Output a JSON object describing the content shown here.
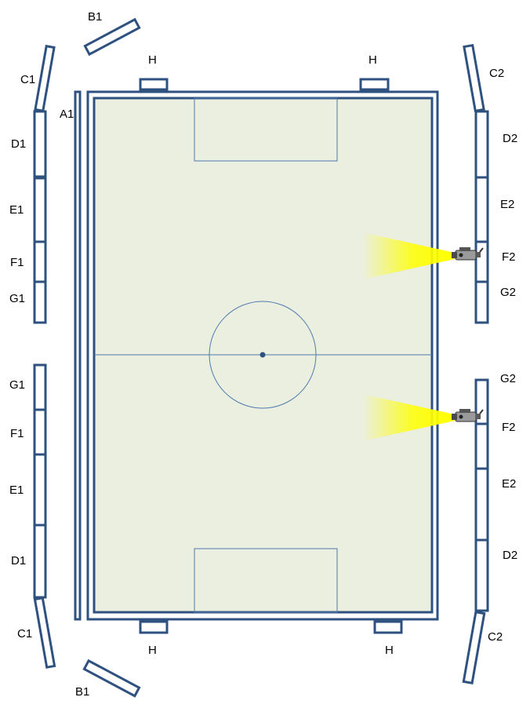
{
  "colors": {
    "outline": "#2e5180",
    "pitch_fill": "#ebefe0",
    "field_lines": "#4f7ab0",
    "beam": "#ffff00",
    "background": "#ffffff"
  },
  "left_side": {
    "barrier_label": "A1",
    "north": {
      "B1": "B1",
      "C1": "C1",
      "D1": "D1",
      "E1": "E1",
      "F1": "F1",
      "G1": "G1"
    },
    "south": {
      "G1": "G1",
      "F1": "F1",
      "E1": "E1",
      "D1": "D1",
      "C1": "C1",
      "B1": "B1"
    }
  },
  "right_side": {
    "north": {
      "C2": "C2",
      "D2": "D2",
      "E2": "E2",
      "F2": "F2",
      "G2": "G2"
    },
    "south": {
      "G2": "G2",
      "F2": "F2",
      "E2": "E2",
      "D2": "D2",
      "C2": "C2"
    }
  },
  "ends": {
    "top": {
      "H_left": "H",
      "H_right": "H"
    },
    "bottom": {
      "H_left": "H",
      "H_right": "H"
    }
  },
  "cameras": [
    {
      "name": "camera-icon"
    },
    {
      "name": "camera-icon"
    }
  ]
}
